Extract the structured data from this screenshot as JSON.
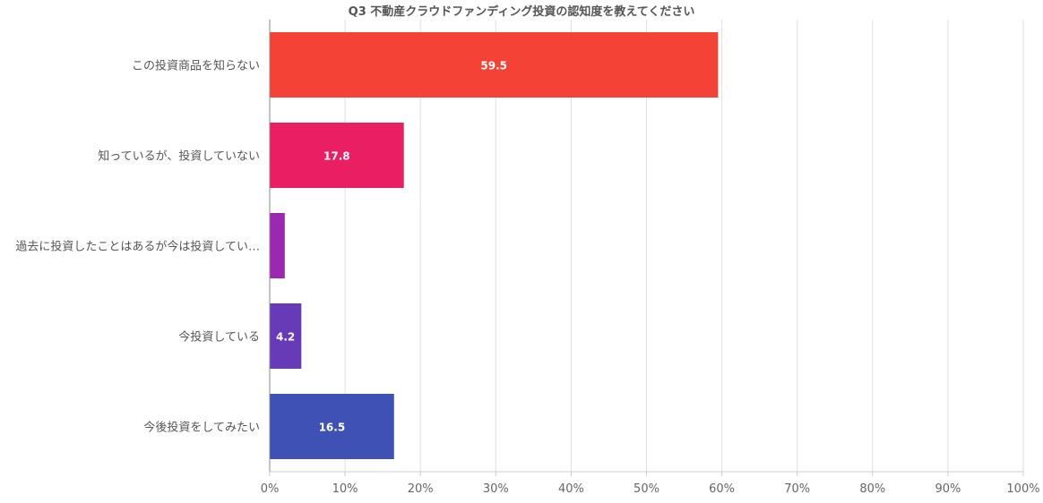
{
  "chart_data": {
    "type": "bar",
    "orientation": "horizontal",
    "title": "Q3 不動産クラウドファンディング投資の認知度を教えてください",
    "categories": [
      "この投資商品を知らない",
      "知っているが、投資していない",
      "過去に投資したことはあるが今は投資してい…",
      "今投資している",
      "今後投資をしてみたい"
    ],
    "values": [
      59.5,
      17.8,
      2.0,
      4.2,
      16.5
    ],
    "data_labels": [
      "59.5",
      "17.8",
      "",
      "4.2",
      "16.5"
    ],
    "colors": [
      "#f44336",
      "#e91e63",
      "#9c27b0",
      "#673ab7",
      "#3f51b5"
    ],
    "xlim": [
      0,
      100
    ],
    "x_ticks": [
      0,
      10,
      20,
      30,
      40,
      50,
      60,
      70,
      80,
      90,
      100
    ],
    "x_tick_labels": [
      "0%",
      "10%",
      "20%",
      "30%",
      "40%",
      "50%",
      "60%",
      "70%",
      "80%",
      "90%",
      "100%"
    ],
    "grid": true,
    "legend": "none"
  }
}
